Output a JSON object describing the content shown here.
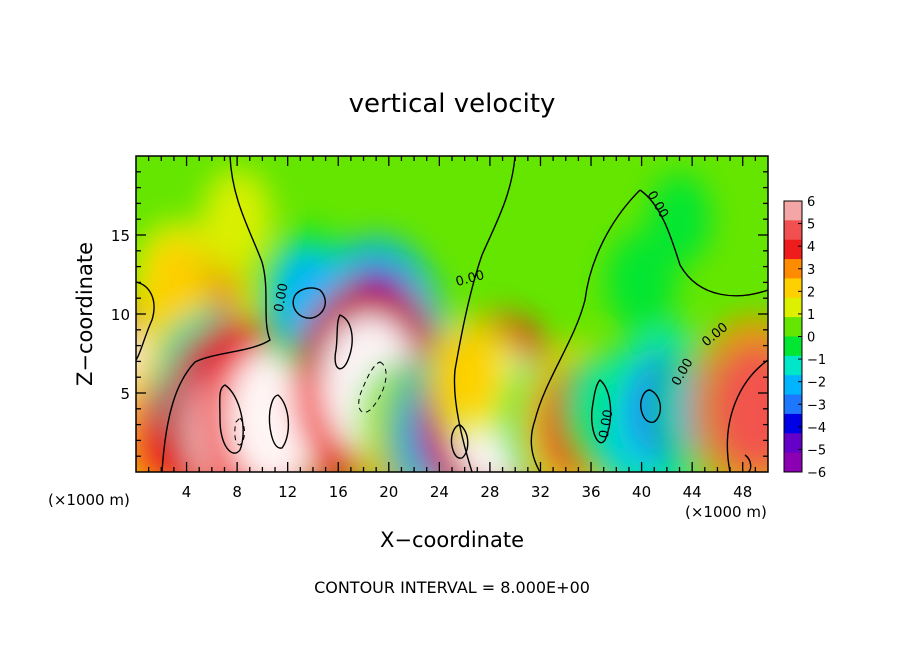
{
  "chart_data": {
    "type": "heatmap",
    "title": "vertical velocity",
    "xlabel": "X−coordinate",
    "ylabel": "Z−coordinate",
    "x_unit_label_left": "(×1000 m)",
    "x_unit_label_right": "(×1000 m)",
    "footer": "CONTOUR INTERVAL = 8.000E+00",
    "xlim": [
      0,
      50
    ],
    "ylim": [
      0,
      20
    ],
    "x_ticks": [
      4,
      8,
      12,
      16,
      20,
      24,
      28,
      32,
      36,
      40,
      44,
      48
    ],
    "x_tick_labels": [
      "4",
      "8",
      "12",
      "16",
      "20",
      "24",
      "28",
      "32",
      "36",
      "40",
      "44",
      "48"
    ],
    "y_ticks": [
      5,
      10,
      15
    ],
    "y_tick_labels": [
      "5",
      "10",
      "15"
    ],
    "colorbar": {
      "range": [
        -6,
        6
      ],
      "ticks": [
        "6",
        "5",
        "4",
        "3",
        "2",
        "1",
        "0",
        "−1",
        "−2",
        "−3",
        "−4",
        "−5",
        "−6"
      ],
      "colors": [
        "#f4a6a6",
        "#f25050",
        "#ee1c1c",
        "#ff8c00",
        "#ffd000",
        "#dcf000",
        "#64e600",
        "#00e632",
        "#00e6c8",
        "#00b4ff",
        "#1e78ff",
        "#0000e6",
        "#6400c8",
        "#8c00b4"
      ]
    },
    "contour_labels": [
      "0.00",
      "0.00",
      "0.00",
      "0.00",
      "0.00",
      "0.00"
    ],
    "features": [
      {
        "x": 1.5,
        "z": 5.0,
        "w": 6
      },
      {
        "x": 2.5,
        "z": 2.5,
        "w": 4
      },
      {
        "x": 4.5,
        "z": 10.5,
        "w": 4
      },
      {
        "x": 3.0,
        "z": 12.0,
        "w": 2
      },
      {
        "x": 6.0,
        "z": 5.0,
        "w": -4
      },
      {
        "x": 8.0,
        "z": 3.0,
        "w": 6
      },
      {
        "x": 11.0,
        "z": 3.5,
        "w": 6
      },
      {
        "x": 13.5,
        "z": 11.0,
        "w": -3
      },
      {
        "x": 19.0,
        "z": 9.0,
        "w": -5
      },
      {
        "x": 18.5,
        "z": 5.5,
        "w": 6
      },
      {
        "x": 21.0,
        "z": 3.0,
        "w": -2
      },
      {
        "x": 22.0,
        "z": 2.0,
        "w": 3
      },
      {
        "x": 25.5,
        "z": 2.0,
        "w": 6
      },
      {
        "x": 24.5,
        "z": 2.5,
        "w": -4
      },
      {
        "x": 28.5,
        "z": 3.5,
        "w": 6
      },
      {
        "x": 26.5,
        "z": 6.0,
        "w": 2
      },
      {
        "x": 33.0,
        "z": 3.0,
        "w": -3
      },
      {
        "x": 35.0,
        "z": 3.0,
        "w": 4
      },
      {
        "x": 37.0,
        "z": 4.0,
        "w": -2
      },
      {
        "x": 39.5,
        "z": 2.5,
        "w": -3
      },
      {
        "x": 42.0,
        "z": 4.0,
        "w": -4
      },
      {
        "x": 45.0,
        "z": 4.0,
        "w": -3
      },
      {
        "x": 49.0,
        "z": 4.0,
        "w": 5
      },
      {
        "x": 8.0,
        "z": 16.0,
        "w": 1
      },
      {
        "x": 40.0,
        "z": 12.0,
        "w": -1
      },
      {
        "x": 43.0,
        "z": 16.0,
        "w": -0.5
      }
    ]
  }
}
